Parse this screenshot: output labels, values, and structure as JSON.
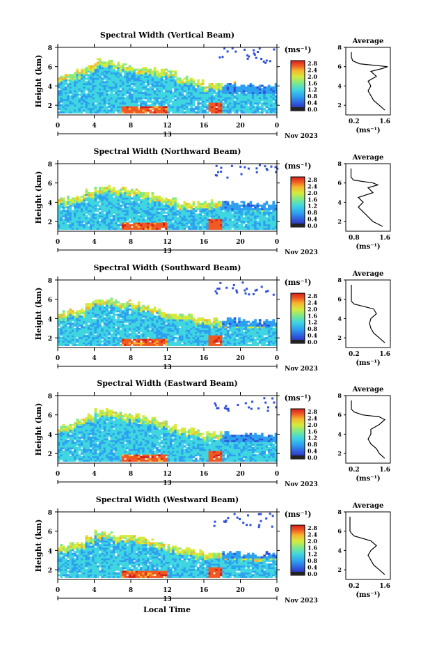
{
  "figure": {
    "panels": [
      {
        "title": "Spectral Width (Vertical Beam)",
        "avg_title": "Average",
        "avg_xticks": [
          "0.2",
          "1.6"
        ]
      },
      {
        "title": "Spectral Width (Northward Beam)",
        "avg_title": "Average",
        "avg_xticks": [
          "0.8",
          "1.6"
        ]
      },
      {
        "title": "Spectral Width (Southward Beam)",
        "avg_title": "Average",
        "avg_xticks": [
          "0.2",
          "1.6"
        ]
      },
      {
        "title": "Spectral Width (Eastward Beam)",
        "avg_title": "Average",
        "avg_xticks": [
          "0.2",
          "1.6"
        ]
      },
      {
        "title": "Spectral Width (Westward Beam)",
        "avg_title": "Average",
        "avg_xticks": [
          "0.2",
          "1.6"
        ]
      }
    ],
    "ylabel": "Height (km)",
    "yticks": [
      "2",
      "4",
      "6",
      "8"
    ],
    "xticks": [
      "0",
      "4",
      "8",
      "12",
      "16",
      "20",
      "0"
    ],
    "day_label": "13",
    "month_label": "Nov 2023",
    "colorbar_unit": "(ms⁻¹)",
    "colorbar_ticks": [
      "2.8",
      "2.4",
      "2.0",
      "1.6",
      "1.2",
      "0.8",
      "0.4",
      "0.0"
    ],
    "avg_xlabel": "(ms⁻¹)",
    "avg_yticks": [
      "2",
      "4",
      "6",
      "8"
    ],
    "xlabel": "Local Time"
  },
  "chart_data": {
    "type": "heatmap",
    "x_range_hours": [
      0,
      24
    ],
    "y_range_km": [
      1,
      8
    ],
    "color_range_ms": [
      0.0,
      2.8
    ],
    "colormap": [
      "#2b1f8f",
      "#2f4fd8",
      "#2ea0f0",
      "#3fd6e0",
      "#7ee88a",
      "#d6ea3c",
      "#f7b52e",
      "#f05a22",
      "#d21f1f"
    ],
    "series": [
      {
        "name": "Vertical Beam",
        "top_km": [
          5.0,
          5.3,
          5.6,
          6.1,
          6.6,
          6.6,
          6.3,
          6.2,
          6.0,
          6.0,
          5.8,
          5.6,
          5.4,
          4.9,
          4.8,
          4.5,
          4.2,
          4.2,
          4.2,
          4.2,
          4.1,
          4.1,
          4.1,
          4.1
        ],
        "average_profile": {
          "height_km": [
            1.5,
            2.0,
            2.5,
            3.0,
            3.5,
            4.0,
            4.5,
            5.0,
            5.5,
            5.8,
            6.0,
            6.3,
            6.6,
            7.0,
            7.5
          ],
          "width_ms": [
            1.5,
            1.3,
            1.1,
            1.0,
            0.9,
            1.0,
            0.9,
            1.2,
            1.0,
            1.4,
            1.6,
            0.6,
            0.35,
            0.3,
            0.3
          ]
        }
      },
      {
        "name": "Northward Beam",
        "top_km": [
          4.4,
          4.5,
          4.7,
          5.2,
          5.7,
          5.7,
          5.4,
          5.4,
          5.2,
          5.0,
          4.8,
          4.6,
          4.4,
          4.0,
          3.9,
          4.0,
          4.0,
          4.0,
          4.0,
          4.0,
          3.9,
          3.9,
          3.9,
          3.9
        ],
        "average_profile": {
          "height_km": [
            1.5,
            2.0,
            2.5,
            3.0,
            3.5,
            4.0,
            4.5,
            5.0,
            5.5,
            5.8,
            6.0,
            6.3,
            6.6,
            7.0,
            7.5
          ],
          "width_ms": [
            1.5,
            1.3,
            1.2,
            1.1,
            1.0,
            1.1,
            1.0,
            1.3,
            1.2,
            1.4,
            1.3,
            0.9,
            0.85,
            0.85,
            0.85
          ]
        }
      },
      {
        "name": "Southward Beam",
        "top_km": [
          4.6,
          4.9,
          5.0,
          5.6,
          6.1,
          6.1,
          5.8,
          5.8,
          5.6,
          5.4,
          5.2,
          4.8,
          4.6,
          4.4,
          4.3,
          4.0,
          3.8,
          3.9,
          3.9,
          3.9,
          3.8,
          3.8,
          3.8,
          3.8
        ],
        "average_profile": {
          "height_km": [
            1.5,
            2.0,
            2.5,
            3.0,
            3.5,
            4.0,
            4.5,
            5.0,
            5.5,
            5.8,
            6.0,
            6.3,
            6.6,
            7.0,
            7.5
          ],
          "width_ms": [
            1.5,
            1.3,
            1.1,
            1.0,
            0.95,
            1.0,
            1.2,
            1.1,
            0.4,
            0.3,
            0.3,
            0.3,
            0.3,
            0.3,
            0.3
          ]
        }
      },
      {
        "name": "Eastward Beam",
        "top_km": [
          4.8,
          5.1,
          5.4,
          6.0,
          6.5,
          6.5,
          6.2,
          6.1,
          6.0,
          5.8,
          5.6,
          5.2,
          5.0,
          4.6,
          4.5,
          4.2,
          4.1,
          4.1,
          4.1,
          4.1,
          4.0,
          4.0,
          4.0,
          4.0
        ],
        "average_profile": {
          "height_km": [
            1.5,
            2.0,
            2.5,
            3.0,
            3.5,
            4.0,
            4.5,
            5.0,
            5.5,
            5.8,
            6.0,
            6.3,
            6.6,
            7.0,
            7.5
          ],
          "width_ms": [
            1.5,
            1.3,
            1.2,
            1.0,
            0.9,
            1.0,
            1.0,
            1.3,
            1.5,
            1.3,
            0.7,
            0.4,
            0.3,
            0.3,
            0.3
          ]
        }
      },
      {
        "name": "Westward Beam",
        "top_km": [
          4.4,
          4.7,
          4.9,
          5.4,
          5.9,
          5.9,
          5.6,
          5.6,
          5.4,
          5.2,
          5.0,
          4.8,
          4.6,
          4.2,
          4.1,
          3.9,
          3.7,
          3.8,
          3.8,
          3.8,
          3.7,
          3.7,
          3.7,
          3.7
        ],
        "average_profile": {
          "height_km": [
            1.5,
            2.0,
            2.5,
            3.0,
            3.5,
            4.0,
            4.5,
            5.0,
            5.5,
            5.8,
            6.0,
            6.3,
            6.6,
            7.0,
            7.5
          ],
          "width_ms": [
            1.5,
            1.3,
            1.1,
            1.0,
            0.9,
            1.0,
            1.2,
            1.0,
            0.4,
            0.3,
            0.25,
            0.25,
            0.25,
            0.25,
            0.25
          ]
        }
      }
    ]
  }
}
